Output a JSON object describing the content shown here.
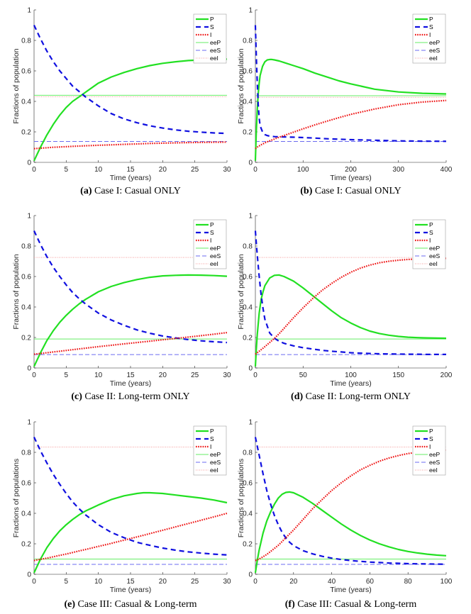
{
  "figure": {
    "legend_labels": [
      "P",
      "S",
      "I",
      "eeP",
      "eeS",
      "eeI"
    ],
    "xlabel": "Time (years)"
  },
  "colors": {
    "P": "#22e022",
    "S": "#1010e0",
    "I": "#ee1010",
    "eeP": "#66ee66",
    "eeS": "#6b6bf0",
    "eeI": "#f59a9a",
    "axis": "#262626"
  },
  "chart_data": [
    {
      "type": "line",
      "panel": "a",
      "caption_label": "(a)",
      "caption_text": " Case I: Casual ONLY",
      "xlabel": "Time (years)",
      "ylabel": "Fractions of population",
      "xlim": [
        0,
        30
      ],
      "ylim": [
        0,
        1
      ],
      "xticks": [
        0,
        5,
        10,
        15,
        20,
        25,
        30
      ],
      "yticks": [
        0,
        0.2,
        0.4,
        0.6,
        0.8,
        1
      ],
      "legend": "top-right",
      "x": [
        0,
        1,
        2,
        3,
        4,
        5,
        6,
        7,
        8,
        10,
        12,
        14,
        16,
        18,
        20,
        22,
        24,
        26,
        28,
        30
      ],
      "series": [
        {
          "name": "P",
          "style": "solid-thick",
          "values": [
            0.01,
            0.1,
            0.18,
            0.25,
            0.31,
            0.36,
            0.4,
            0.43,
            0.46,
            0.52,
            0.56,
            0.59,
            0.615,
            0.635,
            0.65,
            0.66,
            0.668,
            0.672,
            0.675,
            0.677
          ]
        },
        {
          "name": "S",
          "style": "dashed-thick",
          "values": [
            0.9,
            0.81,
            0.73,
            0.66,
            0.6,
            0.55,
            0.5,
            0.465,
            0.43,
            0.37,
            0.32,
            0.285,
            0.26,
            0.24,
            0.225,
            0.213,
            0.204,
            0.198,
            0.193,
            0.19
          ]
        },
        {
          "name": "I",
          "style": "dotted-thick",
          "values": [
            0.09,
            0.093,
            0.096,
            0.099,
            0.101,
            0.103,
            0.105,
            0.107,
            0.109,
            0.112,
            0.115,
            0.118,
            0.121,
            0.124,
            0.126,
            0.128,
            0.13,
            0.131,
            0.132,
            0.133
          ]
        }
      ],
      "equilibria": {
        "eeP": 0.44,
        "eeS": 0.137,
        "eeI": 0.43
      }
    },
    {
      "type": "line",
      "panel": "b",
      "caption_label": "(b)",
      "caption_text": " Case I: Casual ONLY",
      "xlabel": "Time (years)",
      "ylabel": "Fractions of population",
      "xlim": [
        0,
        400
      ],
      "ylim": [
        0,
        1
      ],
      "xticks": [
        0,
        100,
        200,
        300,
        400
      ],
      "yticks": [
        0,
        0.2,
        0.4,
        0.6,
        0.8,
        1
      ],
      "legend": "top-right",
      "x": [
        0,
        2,
        4,
        6,
        8,
        10,
        15,
        20,
        25,
        30,
        35,
        40,
        50,
        60,
        80,
        100,
        125,
        150,
        175,
        200,
        250,
        300,
        350,
        400
      ],
      "series": [
        {
          "name": "P",
          "style": "solid-thick",
          "values": [
            0.01,
            0.2,
            0.35,
            0.45,
            0.52,
            0.57,
            0.63,
            0.66,
            0.672,
            0.675,
            0.675,
            0.672,
            0.665,
            0.655,
            0.635,
            0.615,
            0.585,
            0.56,
            0.535,
            0.515,
            0.48,
            0.462,
            0.453,
            0.449
          ]
        },
        {
          "name": "S",
          "style": "dashed-thick",
          "values": [
            0.9,
            0.7,
            0.52,
            0.38,
            0.29,
            0.24,
            0.2,
            0.183,
            0.176,
            0.172,
            0.17,
            0.169,
            0.168,
            0.167,
            0.165,
            0.163,
            0.159,
            0.155,
            0.152,
            0.149,
            0.145,
            0.141,
            0.139,
            0.138
          ]
        },
        {
          "name": "I",
          "style": "dotted-thick",
          "values": [
            0.09,
            0.095,
            0.1,
            0.104,
            0.108,
            0.112,
            0.12,
            0.128,
            0.135,
            0.141,
            0.147,
            0.153,
            0.165,
            0.176,
            0.198,
            0.22,
            0.246,
            0.27,
            0.293,
            0.315,
            0.35,
            0.378,
            0.396,
            0.406
          ]
        }
      ],
      "equilibria": {
        "eeP": 0.437,
        "eeS": 0.137,
        "eeI": 0.427
      }
    },
    {
      "type": "line",
      "panel": "c",
      "caption_label": "(c)",
      "caption_text": " Case II: Long-term ONLY",
      "xlabel": "Time (years)",
      "ylabel": "Fractions of population",
      "xlim": [
        0,
        30
      ],
      "ylim": [
        0,
        1
      ],
      "xticks": [
        0,
        5,
        10,
        15,
        20,
        25,
        30
      ],
      "yticks": [
        0,
        0.2,
        0.4,
        0.6,
        0.8,
        1
      ],
      "legend": "top-right",
      "x": [
        0,
        1,
        2,
        3,
        4,
        5,
        6,
        7,
        8,
        10,
        12,
        14,
        16,
        18,
        20,
        22,
        24,
        26,
        28,
        30
      ],
      "series": [
        {
          "name": "P",
          "style": "solid-thick",
          "values": [
            0.01,
            0.1,
            0.18,
            0.245,
            0.3,
            0.345,
            0.385,
            0.42,
            0.45,
            0.5,
            0.535,
            0.56,
            0.58,
            0.595,
            0.604,
            0.608,
            0.61,
            0.609,
            0.606,
            0.602
          ]
        },
        {
          "name": "S",
          "style": "dashed-thick",
          "values": [
            0.9,
            0.81,
            0.73,
            0.66,
            0.6,
            0.545,
            0.495,
            0.455,
            0.42,
            0.36,
            0.315,
            0.28,
            0.25,
            0.228,
            0.21,
            0.197,
            0.186,
            0.178,
            0.172,
            0.167
          ]
        },
        {
          "name": "I",
          "style": "dotted-thick",
          "values": [
            0.09,
            0.095,
            0.1,
            0.105,
            0.11,
            0.115,
            0.12,
            0.125,
            0.13,
            0.14,
            0.149,
            0.158,
            0.167,
            0.176,
            0.185,
            0.194,
            0.203,
            0.212,
            0.222,
            0.232
          ]
        }
      ],
      "equilibria": {
        "eeP": 0.19,
        "eeS": 0.088,
        "eeI": 0.725
      }
    },
    {
      "type": "line",
      "panel": "d",
      "caption_label": "(d)",
      "caption_text": " Case II: Long-term ONLY",
      "xlabel": "Time (years)",
      "ylabel": "Fractions of population",
      "xlim": [
        0,
        200
      ],
      "ylim": [
        0,
        1
      ],
      "xticks": [
        0,
        50,
        100,
        150,
        200
      ],
      "yticks": [
        0,
        0.2,
        0.4,
        0.6,
        0.8,
        1
      ],
      "legend": "top-right",
      "x": [
        0,
        1,
        2,
        4,
        6,
        8,
        10,
        15,
        20,
        25,
        30,
        40,
        50,
        60,
        70,
        80,
        90,
        100,
        110,
        120,
        130,
        140,
        150,
        160,
        170,
        180,
        190,
        200
      ],
      "series": [
        {
          "name": "P",
          "style": "solid-thick",
          "values": [
            0.01,
            0.12,
            0.22,
            0.36,
            0.45,
            0.5,
            0.54,
            0.59,
            0.608,
            0.61,
            0.6,
            0.57,
            0.525,
            0.475,
            0.425,
            0.375,
            0.33,
            0.295,
            0.265,
            0.242,
            0.226,
            0.215,
            0.207,
            0.202,
            0.199,
            0.197,
            0.196,
            0.195
          ]
        },
        {
          "name": "S",
          "style": "dashed-thick",
          "values": [
            0.9,
            0.82,
            0.74,
            0.6,
            0.48,
            0.39,
            0.32,
            0.23,
            0.195,
            0.175,
            0.162,
            0.145,
            0.133,
            0.124,
            0.116,
            0.11,
            0.105,
            0.1,
            0.097,
            0.095,
            0.093,
            0.092,
            0.091,
            0.09,
            0.09,
            0.089,
            0.089,
            0.089
          ]
        },
        {
          "name": "I",
          "style": "dotted-thick",
          "values": [
            0.09,
            0.095,
            0.1,
            0.11,
            0.12,
            0.13,
            0.14,
            0.167,
            0.195,
            0.225,
            0.26,
            0.33,
            0.395,
            0.455,
            0.51,
            0.555,
            0.595,
            0.628,
            0.655,
            0.675,
            0.69,
            0.7,
            0.707,
            0.712,
            0.715,
            0.717,
            0.718,
            0.719
          ]
        }
      ],
      "equilibria": {
        "eeP": 0.19,
        "eeS": 0.088,
        "eeI": 0.725
      }
    },
    {
      "type": "line",
      "panel": "e",
      "caption_label": "(e)",
      "caption_text": " Case III: Casual & Long-term",
      "xlabel": "Time (years)",
      "ylabel": "Fractions of populations",
      "xlim": [
        0,
        30
      ],
      "ylim": [
        0,
        1
      ],
      "xticks": [
        0,
        5,
        10,
        15,
        20,
        25,
        30
      ],
      "yticks": [
        0,
        0.2,
        0.4,
        0.6,
        0.8,
        1
      ],
      "legend": "top-right",
      "x": [
        0,
        1,
        2,
        3,
        4,
        5,
        6,
        7,
        8,
        10,
        12,
        14,
        16,
        17,
        18,
        20,
        22,
        24,
        26,
        28,
        30
      ],
      "series": [
        {
          "name": "P",
          "style": "solid-thick",
          "values": [
            0.01,
            0.1,
            0.175,
            0.235,
            0.285,
            0.325,
            0.36,
            0.39,
            0.415,
            0.455,
            0.49,
            0.515,
            0.53,
            0.535,
            0.535,
            0.53,
            0.52,
            0.51,
            0.5,
            0.487,
            0.47
          ]
        },
        {
          "name": "S",
          "style": "dashed-thick",
          "values": [
            0.9,
            0.81,
            0.73,
            0.655,
            0.59,
            0.53,
            0.475,
            0.43,
            0.39,
            0.325,
            0.275,
            0.24,
            0.21,
            0.2,
            0.19,
            0.172,
            0.158,
            0.147,
            0.139,
            0.132,
            0.127
          ]
        },
        {
          "name": "I",
          "style": "dotted-thick",
          "values": [
            0.09,
            0.098,
            0.106,
            0.115,
            0.124,
            0.133,
            0.143,
            0.153,
            0.163,
            0.183,
            0.203,
            0.224,
            0.245,
            0.256,
            0.267,
            0.289,
            0.311,
            0.333,
            0.355,
            0.377,
            0.4
          ]
        }
      ],
      "equilibria": {
        "eeP": 0.1,
        "eeS": 0.065,
        "eeI": 0.835
      }
    },
    {
      "type": "line",
      "panel": "f",
      "caption_label": "(f)",
      "caption_text": " Case III: Casual & Long-term",
      "xlabel": "Time (years)",
      "ylabel": "Fractions of populations",
      "xlim": [
        0,
        100
      ],
      "ylim": [
        0,
        1
      ],
      "xticks": [
        0,
        20,
        40,
        60,
        80,
        100
      ],
      "yticks": [
        0,
        0.2,
        0.4,
        0.6,
        0.8,
        1
      ],
      "legend": "top-right",
      "x": [
        0,
        1,
        2,
        4,
        6,
        8,
        10,
        12,
        14,
        16,
        18,
        20,
        25,
        30,
        35,
        40,
        45,
        50,
        55,
        60,
        65,
        70,
        75,
        80,
        85,
        90,
        95,
        100
      ],
      "series": [
        {
          "name": "P",
          "style": "solid-thick",
          "values": [
            0.01,
            0.09,
            0.16,
            0.27,
            0.35,
            0.41,
            0.46,
            0.5,
            0.525,
            0.537,
            0.54,
            0.535,
            0.505,
            0.465,
            0.42,
            0.375,
            0.33,
            0.29,
            0.255,
            0.225,
            0.2,
            0.18,
            0.163,
            0.15,
            0.14,
            0.132,
            0.126,
            0.122
          ]
        },
        {
          "name": "S",
          "style": "dashed-thick",
          "values": [
            0.9,
            0.84,
            0.78,
            0.66,
            0.55,
            0.46,
            0.385,
            0.325,
            0.275,
            0.238,
            0.21,
            0.188,
            0.155,
            0.134,
            0.118,
            0.106,
            0.097,
            0.09,
            0.085,
            0.08,
            0.077,
            0.074,
            0.072,
            0.07,
            0.069,
            0.068,
            0.067,
            0.066
          ]
        },
        {
          "name": "I",
          "style": "dotted-thick",
          "values": [
            0.09,
            0.095,
            0.1,
            0.115,
            0.13,
            0.15,
            0.17,
            0.19,
            0.215,
            0.24,
            0.265,
            0.29,
            0.36,
            0.43,
            0.49,
            0.55,
            0.6,
            0.645,
            0.685,
            0.715,
            0.742,
            0.763,
            0.779,
            0.792,
            0.801,
            0.808,
            0.813,
            0.816
          ]
        }
      ],
      "equilibria": {
        "eeP": 0.1,
        "eeS": 0.065,
        "eeI": 0.835
      }
    }
  ]
}
